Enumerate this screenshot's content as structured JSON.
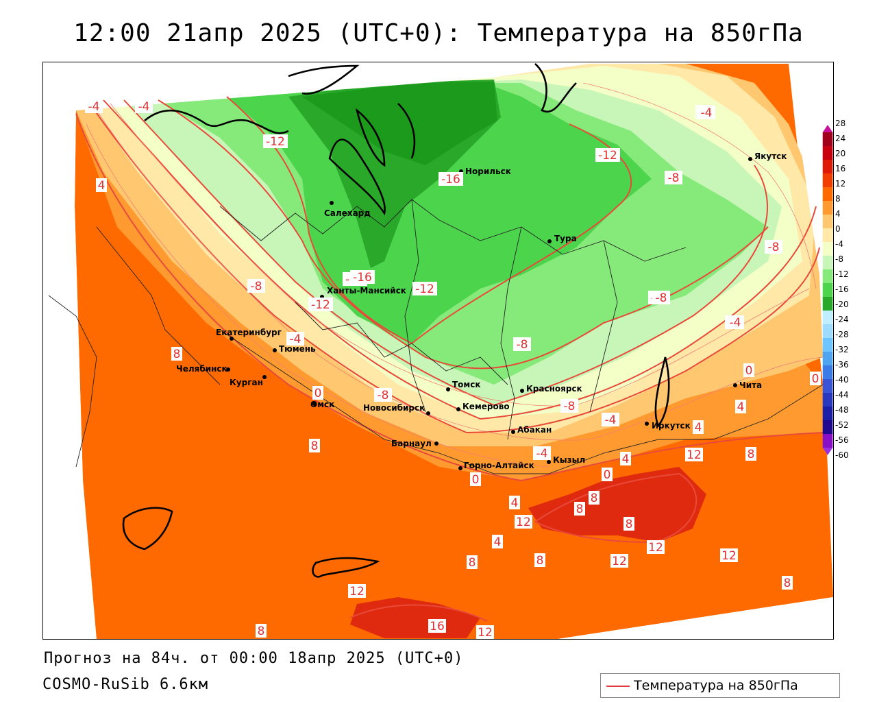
{
  "title": "12:00 21апр 2025 (UTC+0): Температура на 850гПа",
  "footer": {
    "forecast": "Прогноз на 84ч. от 00:00 18апр 2025 (UTC+0)",
    "model": "COSMO-RuSib 6.6км"
  },
  "legend": {
    "label": "Температура на 850гПа",
    "line_color": "#e23a3a"
  },
  "colorbar": {
    "labels": [
      "28",
      "24",
      "20",
      "16",
      "12",
      "8",
      "4",
      "0",
      "-4",
      "-8",
      "-12",
      "-16",
      "-20",
      "-24",
      "-28",
      "-32",
      "-36",
      "-40",
      "-44",
      "-48",
      "-52",
      "-56",
      "-60"
    ],
    "colors": [
      "#a0001a",
      "#c80010",
      "#e01a08",
      "#f23c00",
      "#ff6a00",
      "#ff9a30",
      "#ffc870",
      "#ffe8a8",
      "#f4ffc8",
      "#c8f5b8",
      "#86ea7a",
      "#4cd44c",
      "#2aa82a",
      "#bfeeff",
      "#9ddcff",
      "#6ec4ff",
      "#4fa5f0",
      "#3c7ce6",
      "#3a54d8",
      "#2a38c0",
      "#1c1ea8",
      "#1e0890",
      "#8a10c8"
    ]
  },
  "cities": [
    {
      "name": "Якутск"
    },
    {
      "name": "Норильск"
    },
    {
      "name": "Салехард"
    },
    {
      "name": "Тура"
    },
    {
      "name": "Ханты-Мансийск"
    },
    {
      "name": "Екатеринбург"
    },
    {
      "name": "Тюмень"
    },
    {
      "name": "Челябинск"
    },
    {
      "name": "Курган"
    },
    {
      "name": "Омск"
    },
    {
      "name": "Новосибирск"
    },
    {
      "name": "Томск"
    },
    {
      "name": "Кемерово"
    },
    {
      "name": "Красноярск"
    },
    {
      "name": "Абакан"
    },
    {
      "name": "Барнаул"
    },
    {
      "name": "Горно-Алтайск"
    },
    {
      "name": "Кызыл"
    },
    {
      "name": "Иркутск"
    },
    {
      "name": "Чита"
    }
  ],
  "isotherm_labels": [
    "-4",
    "-4",
    "-12",
    "4",
    "-4",
    "-12",
    "-8",
    "-16",
    "-16",
    "-12",
    "-8",
    "-8",
    "-16",
    "-12",
    "-12",
    "-8",
    "-8",
    "-4",
    "-4",
    "-8",
    "-8",
    "0",
    "0",
    "-4",
    "-4",
    "8",
    "8",
    "0",
    "12",
    "8",
    "0",
    "4",
    "12",
    "4",
    "4",
    "8",
    "8",
    "4",
    "8",
    "12",
    "8",
    "12",
    "12",
    "8",
    "12",
    "16",
    "12",
    "8",
    "8",
    "0",
    "-4",
    "4",
    "-4",
    "-8"
  ]
}
